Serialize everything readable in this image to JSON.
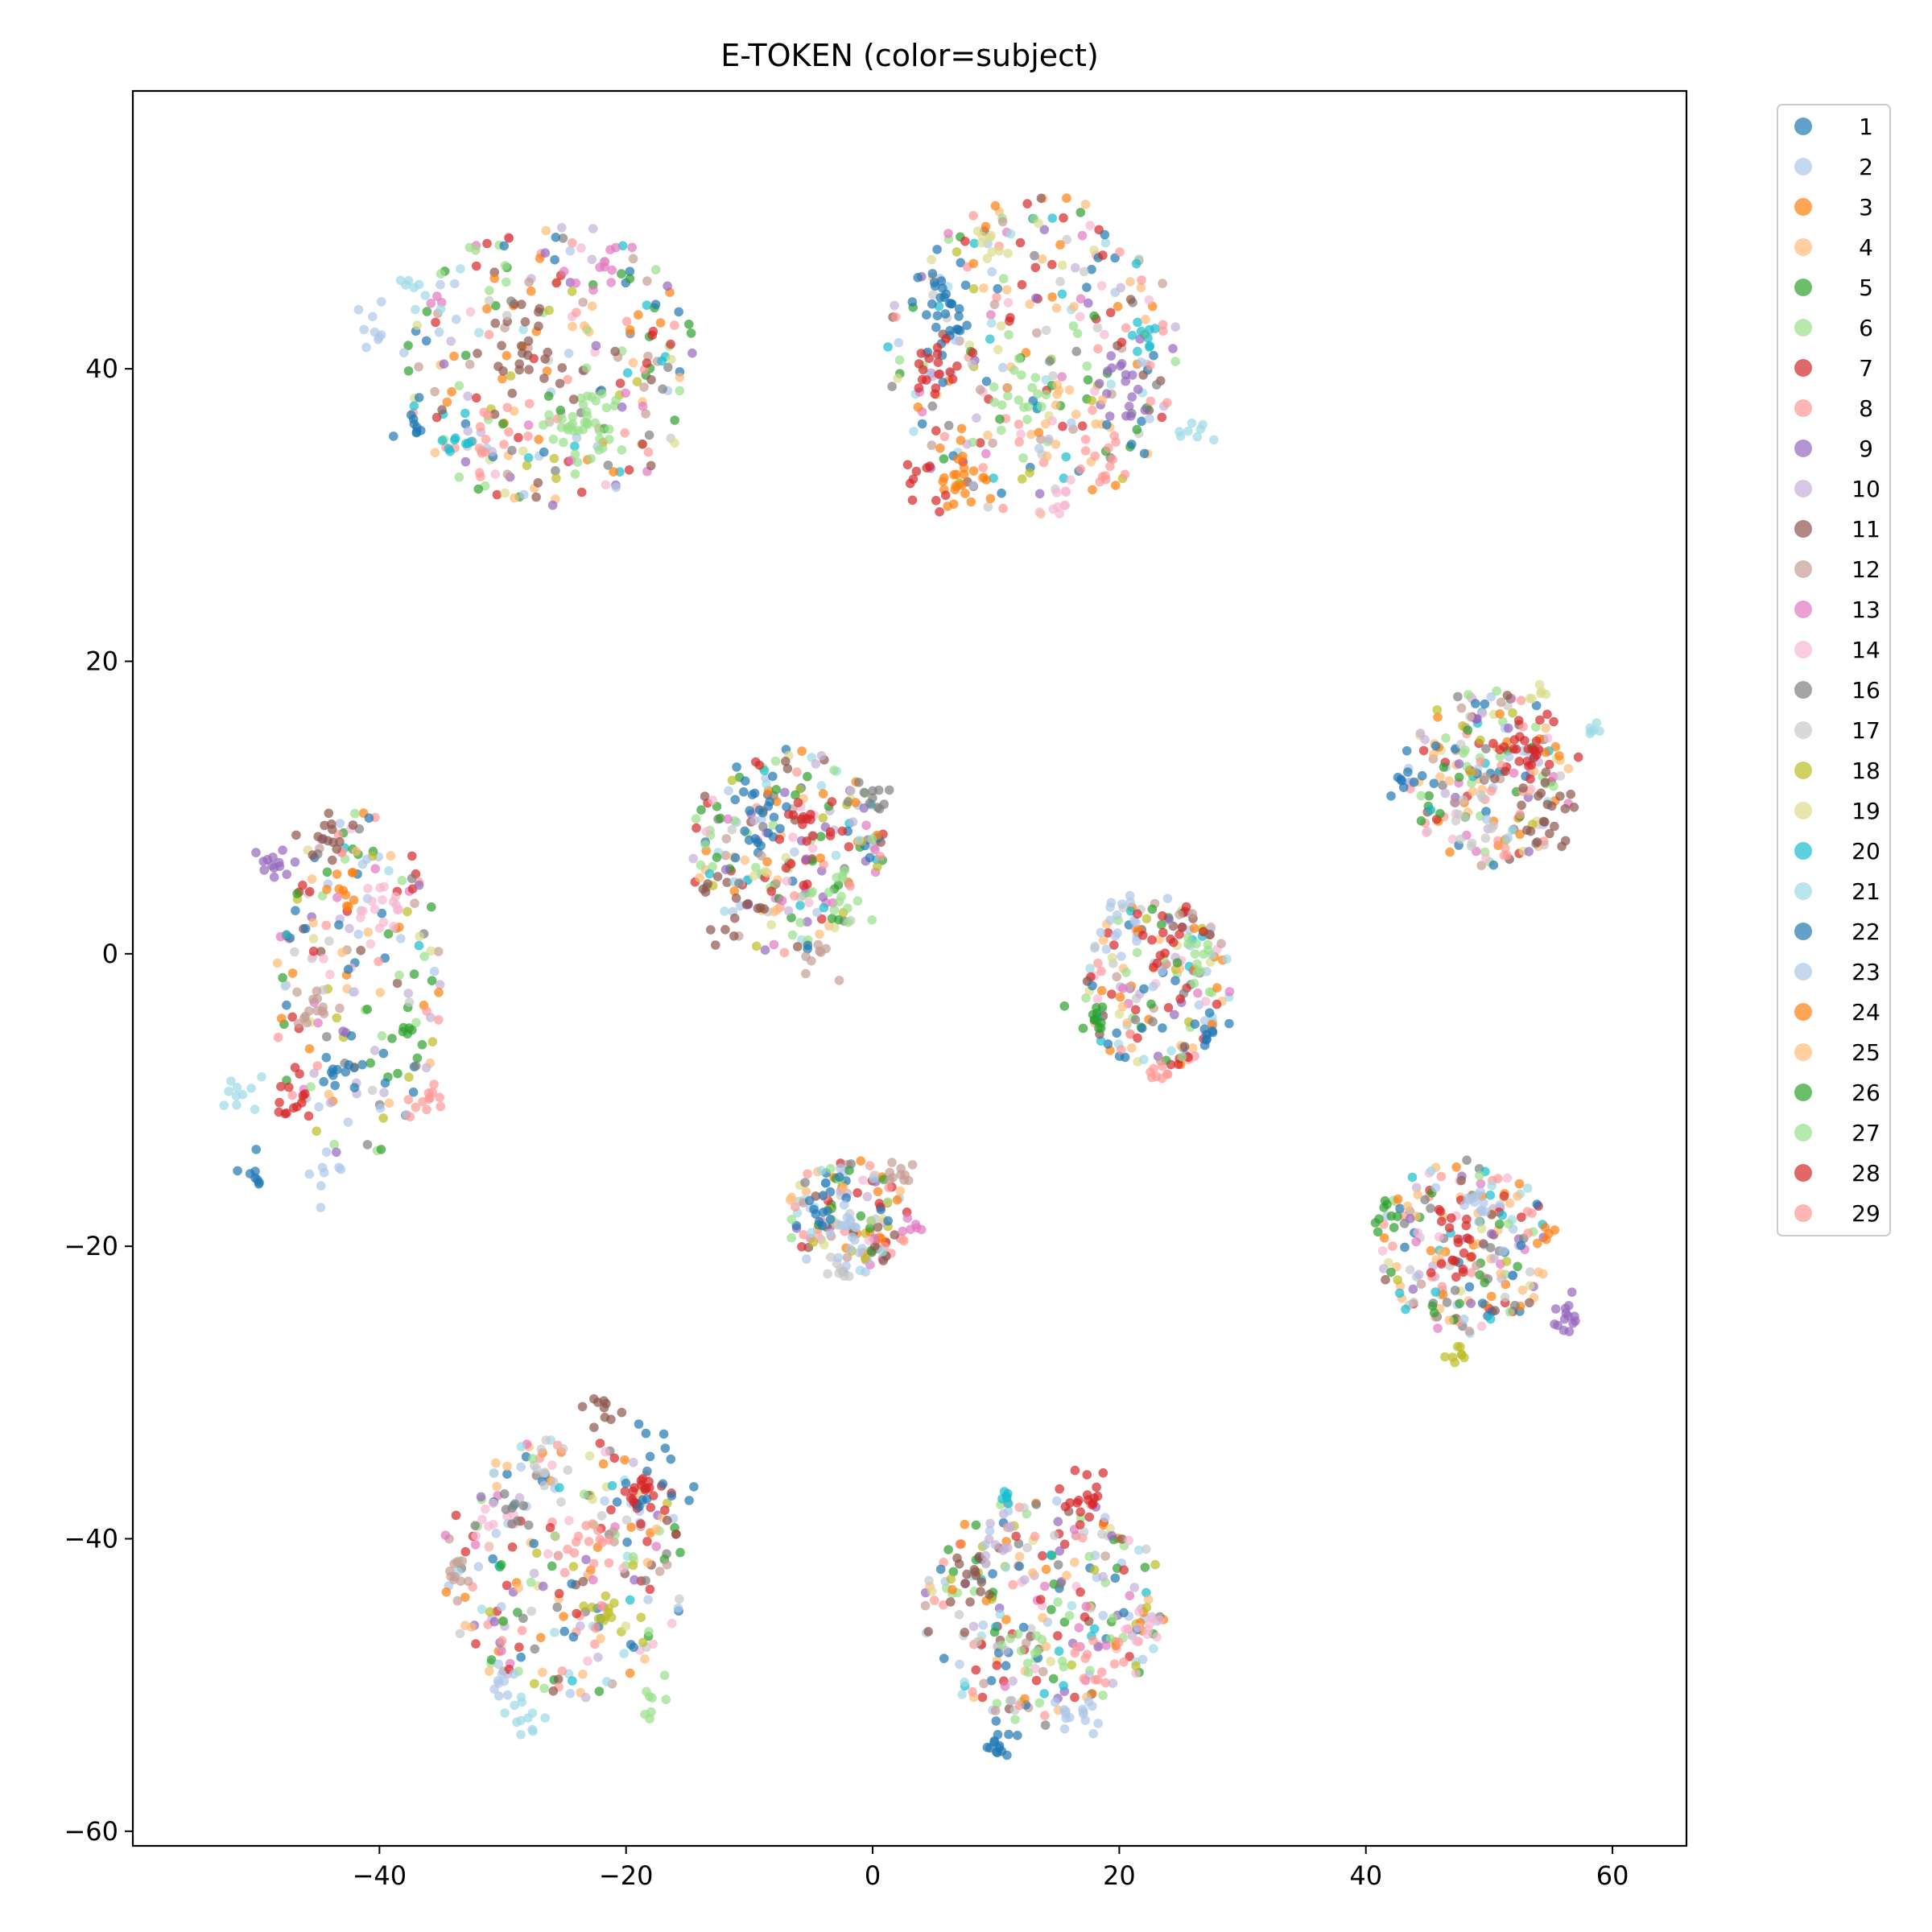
{
  "chart_data": {
    "type": "scatter",
    "title": "E-TOKEN (color=subject)",
    "xlabel": "",
    "ylabel": "",
    "xlim": [
      -60,
      66
    ],
    "ylim": [
      -61,
      59
    ],
    "x_ticks": [
      -40,
      -20,
      0,
      20,
      40,
      60
    ],
    "x_tick_labels": [
      "−40",
      "−20",
      "0",
      "20",
      "40",
      "60"
    ],
    "y_ticks": [
      -60,
      -40,
      -20,
      0,
      20,
      40
    ],
    "y_tick_labels": [
      "−60",
      "−40",
      "−20",
      "0",
      "20",
      "40"
    ],
    "grid": false,
    "legend_position": "outside right",
    "marker_alpha": 0.7,
    "subjects": [
      {
        "name": "1",
        "color": "#1f77b4"
      },
      {
        "name": "2",
        "color": "#aec7e8"
      },
      {
        "name": "3",
        "color": "#ff7f0e"
      },
      {
        "name": "4",
        "color": "#ffbb78"
      },
      {
        "name": "5",
        "color": "#2ca02c"
      },
      {
        "name": "6",
        "color": "#98df8a"
      },
      {
        "name": "7",
        "color": "#d62728"
      },
      {
        "name": "8",
        "color": "#ff9896"
      },
      {
        "name": "9",
        "color": "#9467bd"
      },
      {
        "name": "10",
        "color": "#c5b0d5"
      },
      {
        "name": "11",
        "color": "#8c564b"
      },
      {
        "name": "12",
        "color": "#c49c94"
      },
      {
        "name": "13",
        "color": "#e377c2"
      },
      {
        "name": "14",
        "color": "#f7b6d2"
      },
      {
        "name": "16",
        "color": "#7f7f7f"
      },
      {
        "name": "17",
        "color": "#c7c7c7"
      },
      {
        "name": "18",
        "color": "#bcbd22"
      },
      {
        "name": "19",
        "color": "#dbdb8d"
      },
      {
        "name": "20",
        "color": "#17becf"
      },
      {
        "name": "21",
        "color": "#9edae5"
      },
      {
        "name": "22",
        "color": "#1f77b4"
      },
      {
        "name": "23",
        "color": "#aec7e8"
      },
      {
        "name": "24",
        "color": "#ff7f0e"
      },
      {
        "name": "25",
        "color": "#ffbb78"
      },
      {
        "name": "26",
        "color": "#2ca02c"
      },
      {
        "name": "27",
        "color": "#98df8a"
      },
      {
        "name": "28",
        "color": "#d62728"
      },
      {
        "name": "29",
        "color": "#ff9896"
      }
    ],
    "clusters": [
      {
        "cx": -26,
        "cy": 40,
        "rx": 12,
        "ry": 10,
        "n": 260,
        "subclusters": [
          {
            "subject": "6",
            "x": -23,
            "y": 36,
            "spread": 2.5,
            "n": 40
          },
          {
            "subject": "11",
            "x": -28,
            "y": 41,
            "spread": 3,
            "n": 25
          },
          {
            "subject": "23",
            "x": -40,
            "y": 43,
            "spread": 2,
            "n": 10
          },
          {
            "subject": "21",
            "x": -37,
            "y": 45,
            "spread": 1.5,
            "n": 8
          },
          {
            "subject": "8",
            "x": -31,
            "y": 35,
            "spread": 2,
            "n": 15
          },
          {
            "subject": "13",
            "x": -22,
            "y": 47,
            "spread": 2,
            "n": 10
          },
          {
            "subject": "22",
            "x": -37,
            "y": 36,
            "spread": 1.2,
            "n": 8
          },
          {
            "subject": "20",
            "x": -34,
            "y": 35,
            "spread": 1.5,
            "n": 8
          }
        ]
      },
      {
        "cx": 13,
        "cy": 41,
        "rx": 12,
        "ry": 11,
        "n": 300,
        "subclusters": [
          {
            "subject": "22",
            "x": 6,
            "y": 44,
            "spread": 2.5,
            "n": 30
          },
          {
            "subject": "7",
            "x": 5,
            "y": 40,
            "spread": 1.8,
            "n": 18
          },
          {
            "subject": "24",
            "x": 7,
            "y": 33,
            "spread": 2,
            "n": 22
          },
          {
            "subject": "28",
            "x": 4,
            "y": 32,
            "spread": 1.5,
            "n": 10
          },
          {
            "subject": "9",
            "x": 20,
            "y": 39,
            "spread": 2,
            "n": 18
          },
          {
            "subject": "29",
            "x": 19,
            "y": 33,
            "spread": 2,
            "n": 14
          },
          {
            "subject": "20",
            "x": 22,
            "y": 42,
            "spread": 1,
            "n": 8
          },
          {
            "subject": "21",
            "x": 26,
            "y": 36,
            "spread": 1.2,
            "n": 8
          },
          {
            "subject": "14",
            "x": 15,
            "y": 31,
            "spread": 1.5,
            "n": 10
          },
          {
            "subject": "19",
            "x": 10,
            "y": 49,
            "spread": 1.5,
            "n": 8
          },
          {
            "subject": "27",
            "x": 12,
            "y": 38,
            "spread": 2,
            "n": 14
          },
          {
            "subject": "25",
            "x": 16,
            "y": 37,
            "spread": 2,
            "n": 10
          }
        ]
      },
      {
        "cx": 50,
        "cy": 12,
        "rx": 7,
        "ry": 6,
        "n": 210,
        "subclusters": [
          {
            "subject": "7",
            "x": 53,
            "y": 14,
            "spread": 2.5,
            "n": 25
          },
          {
            "subject": "11",
            "x": 55,
            "y": 10,
            "spread": 2,
            "n": 20
          },
          {
            "subject": "22",
            "x": 43,
            "y": 12,
            "spread": 1.2,
            "n": 8
          },
          {
            "subject": "17",
            "x": 48,
            "y": 9,
            "spread": 1.5,
            "n": 10
          },
          {
            "subject": "19",
            "x": 54,
            "y": 18,
            "spread": 1,
            "n": 6
          },
          {
            "subject": "21",
            "x": 58,
            "y": 15,
            "spread": 1,
            "n": 6
          }
        ]
      },
      {
        "cx": -7,
        "cy": 7,
        "rx": 8,
        "ry": 7,
        "n": 240,
        "subclusters": [
          {
            "subject": "1",
            "x": -9,
            "y": 9,
            "spread": 2.5,
            "n": 20
          },
          {
            "subject": "7",
            "x": -5,
            "y": 8,
            "spread": 2.5,
            "n": 20
          },
          {
            "subject": "16",
            "x": 0,
            "y": 11,
            "spread": 1.5,
            "n": 10
          },
          {
            "subject": "27",
            "x": -2,
            "y": 4,
            "spread": 2,
            "n": 12
          },
          {
            "subject": "11",
            "x": -12,
            "y": 3,
            "spread": 2,
            "n": 12
          },
          {
            "subject": "12",
            "x": -4,
            "y": 0,
            "spread": 1.5,
            "n": 8
          }
        ]
      },
      {
        "cx": -42,
        "cy": -2,
        "rx": 7,
        "ry": 12,
        "n": 200,
        "subclusters": [
          {
            "subject": "9",
            "x": -49,
            "y": 6,
            "spread": 1.5,
            "n": 12
          },
          {
            "subject": "11",
            "x": -44,
            "y": 8,
            "spread": 1.5,
            "n": 14
          },
          {
            "subject": "24",
            "x": -43,
            "y": 5,
            "spread": 1.5,
            "n": 10
          },
          {
            "subject": "14",
            "x": -40,
            "y": 3,
            "spread": 1.5,
            "n": 12
          },
          {
            "subject": "12",
            "x": -45,
            "y": -4,
            "spread": 1.8,
            "n": 14
          },
          {
            "subject": "7",
            "x": -47,
            "y": -10,
            "spread": 1.5,
            "n": 14
          },
          {
            "subject": "22",
            "x": -43,
            "y": -8,
            "spread": 1.2,
            "n": 10
          },
          {
            "subject": "29",
            "x": -36,
            "y": -10,
            "spread": 1.2,
            "n": 12
          },
          {
            "subject": "21",
            "x": -51,
            "y": -9,
            "spread": 1.5,
            "n": 10
          },
          {
            "subject": "23",
            "x": -44,
            "y": -15,
            "spread": 1,
            "n": 8
          },
          {
            "subject": "1",
            "x": -50,
            "y": -15,
            "spread": 1,
            "n": 8
          },
          {
            "subject": "26",
            "x": -38,
            "y": -5,
            "spread": 1,
            "n": 6
          }
        ]
      },
      {
        "cx": 23,
        "cy": -2,
        "rx": 6,
        "ry": 6,
        "n": 190,
        "subclusters": [
          {
            "subject": "23",
            "x": 20,
            "y": 2,
            "spread": 2,
            "n": 14
          },
          {
            "subject": "22",
            "x": 27,
            "y": -5,
            "spread": 1.2,
            "n": 10
          },
          {
            "subject": "26",
            "x": 18,
            "y": -5,
            "spread": 1.5,
            "n": 10
          },
          {
            "subject": "7",
            "x": 24,
            "y": 1,
            "spread": 2,
            "n": 14
          },
          {
            "subject": "29",
            "x": 23,
            "y": -8,
            "spread": 1,
            "n": 8
          },
          {
            "subject": "27",
            "x": 26,
            "y": 0,
            "spread": 1.5,
            "n": 10
          }
        ]
      },
      {
        "cx": -2,
        "cy": -18,
        "rx": 5,
        "ry": 4,
        "n": 150,
        "subclusters": [
          {
            "subject": "12",
            "x": 2,
            "y": -15,
            "spread": 1,
            "n": 10
          },
          {
            "subject": "23",
            "x": -2,
            "y": -19,
            "spread": 1.5,
            "n": 14
          },
          {
            "subject": "22",
            "x": -4,
            "y": -17,
            "spread": 1.5,
            "n": 10
          },
          {
            "subject": "13",
            "x": 3,
            "y": -18,
            "spread": 1,
            "n": 6
          },
          {
            "subject": "17",
            "x": -3,
            "y": -22,
            "spread": 1,
            "n": 6
          }
        ]
      },
      {
        "cx": 48,
        "cy": -20,
        "rx": 7,
        "ry": 6,
        "n": 210,
        "subclusters": [
          {
            "subject": "7",
            "x": 47,
            "y": -20,
            "spread": 2.5,
            "n": 20
          },
          {
            "subject": "9",
            "x": 56,
            "y": -25,
            "spread": 1.2,
            "n": 14
          },
          {
            "subject": "18",
            "x": 47,
            "y": -27,
            "spread": 1,
            "n": 8
          },
          {
            "subject": "23",
            "x": 49,
            "y": -17,
            "spread": 1.5,
            "n": 12
          },
          {
            "subject": "26",
            "x": 42,
            "y": -18,
            "spread": 1.2,
            "n": 8
          },
          {
            "subject": "24",
            "x": 55,
            "y": -19,
            "spread": 0.8,
            "n": 5
          }
        ]
      },
      {
        "cx": -25,
        "cy": -42,
        "rx": 10,
        "ry": 9,
        "n": 260,
        "subclusters": [
          {
            "subject": "7",
            "x": -18,
            "y": -37,
            "spread": 1.5,
            "n": 20
          },
          {
            "subject": "22",
            "x": -17,
            "y": -36,
            "spread": 2.5,
            "n": 15
          },
          {
            "subject": "11",
            "x": -22,
            "y": -31,
            "spread": 1.2,
            "n": 10
          },
          {
            "subject": "29",
            "x": -23,
            "y": -40,
            "spread": 1.8,
            "n": 14
          },
          {
            "subject": "21",
            "x": -28,
            "y": -52,
            "spread": 1.2,
            "n": 12
          },
          {
            "subject": "23",
            "x": -30,
            "y": -50,
            "spread": 1,
            "n": 8
          },
          {
            "subject": "27",
            "x": -18,
            "y": -51,
            "spread": 1,
            "n": 8
          },
          {
            "subject": "12",
            "x": -34,
            "y": -43,
            "spread": 1.2,
            "n": 10
          },
          {
            "subject": "18",
            "x": -22,
            "y": -45,
            "spread": 1.2,
            "n": 10
          },
          {
            "subject": "14",
            "x": -31,
            "y": -39,
            "spread": 1.5,
            "n": 10
          },
          {
            "subject": "17",
            "x": -27,
            "y": -35,
            "spread": 1.2,
            "n": 8
          },
          {
            "subject": "16",
            "x": -29,
            "y": -38,
            "spread": 1.2,
            "n": 8
          }
        ]
      },
      {
        "cx": 14,
        "cy": -45,
        "rx": 10,
        "ry": 8,
        "n": 280,
        "subclusters": [
          {
            "subject": "7",
            "x": 17,
            "y": -37,
            "spread": 1.5,
            "n": 18
          },
          {
            "subject": "22",
            "x": 10,
            "y": -54,
            "spread": 1.2,
            "n": 14
          },
          {
            "subject": "23",
            "x": 16,
            "y": -52,
            "spread": 1.5,
            "n": 14
          },
          {
            "subject": "14",
            "x": 22,
            "y": -46,
            "spread": 1.2,
            "n": 10
          },
          {
            "subject": "20",
            "x": 11,
            "y": -37,
            "spread": 1,
            "n": 6
          },
          {
            "subject": "11",
            "x": 8,
            "y": -42,
            "spread": 2,
            "n": 14
          },
          {
            "subject": "29",
            "x": 18,
            "y": -48,
            "spread": 1.5,
            "n": 12
          },
          {
            "subject": "10",
            "x": 10,
            "y": -40,
            "spread": 1.5,
            "n": 10
          },
          {
            "subject": "27",
            "x": 13,
            "y": -48,
            "spread": 2,
            "n": 12
          }
        ]
      }
    ]
  }
}
